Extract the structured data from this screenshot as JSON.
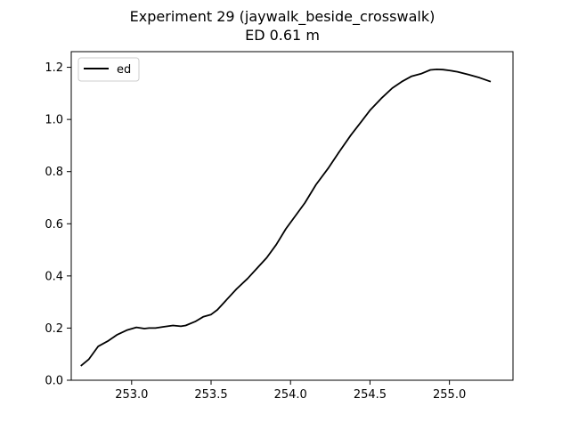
{
  "chart_data": {
    "type": "line",
    "title": "Experiment 29 (jaywalk_beside_crosswalk)",
    "subtitle": "ED 0.61 m",
    "xlabel": "",
    "ylabel": "",
    "xlim": [
      252.62,
      255.4
    ],
    "ylim": [
      0.0,
      1.26
    ],
    "grid": false,
    "legend_position": "upper-left",
    "x_ticks": [
      {
        "value": 253.0,
        "label": "253.0"
      },
      {
        "value": 253.5,
        "label": "253.5"
      },
      {
        "value": 254.0,
        "label": "254.0"
      },
      {
        "value": 254.5,
        "label": "254.5"
      },
      {
        "value": 255.0,
        "label": "255.0"
      }
    ],
    "y_ticks": [
      {
        "value": 0.0,
        "label": "0.0"
      },
      {
        "value": 0.2,
        "label": "0.2"
      },
      {
        "value": 0.4,
        "label": "0.4"
      },
      {
        "value": 0.6,
        "label": "0.6"
      },
      {
        "value": 0.8,
        "label": "0.8"
      },
      {
        "value": 1.0,
        "label": "1.0"
      },
      {
        "value": 1.2,
        "label": "1.2"
      }
    ],
    "series": [
      {
        "name": "ed",
        "color": "#000000",
        "x": [
          252.68,
          252.73,
          252.79,
          252.85,
          252.91,
          252.97,
          253.03,
          253.08,
          253.11,
          253.15,
          253.2,
          253.26,
          253.31,
          253.34,
          253.4,
          253.45,
          253.5,
          253.54,
          253.6,
          253.66,
          253.73,
          253.79,
          253.85,
          253.91,
          253.97,
          254.03,
          254.09,
          254.16,
          254.24,
          254.3,
          254.38,
          254.45,
          254.5,
          254.57,
          254.64,
          254.7,
          254.76,
          254.82,
          254.88,
          254.92,
          254.96,
          255.0,
          255.05,
          255.12,
          255.19,
          255.26
        ],
        "y": [
          0.055,
          0.08,
          0.13,
          0.15,
          0.175,
          0.192,
          0.203,
          0.198,
          0.2,
          0.2,
          0.205,
          0.21,
          0.207,
          0.21,
          0.225,
          0.243,
          0.252,
          0.27,
          0.31,
          0.35,
          0.39,
          0.43,
          0.47,
          0.52,
          0.58,
          0.63,
          0.68,
          0.75,
          0.815,
          0.87,
          0.94,
          0.995,
          1.035,
          1.08,
          1.12,
          1.145,
          1.165,
          1.175,
          1.19,
          1.192,
          1.191,
          1.188,
          1.183,
          1.172,
          1.16,
          1.145
        ]
      }
    ]
  }
}
